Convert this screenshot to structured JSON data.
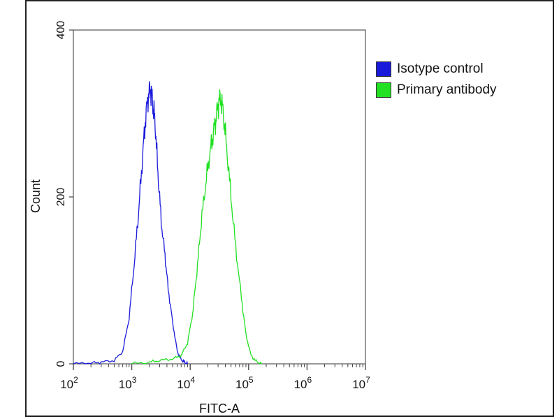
{
  "chart_data": {
    "type": "line",
    "xlabel": "FITC-A",
    "ylabel": "Count",
    "xscale": "log",
    "xlim": [
      100,
      10000000
    ],
    "ylim": [
      0,
      400
    ],
    "xticks": [
      {
        "base": "10",
        "exp": "2"
      },
      {
        "base": "10",
        "exp": "3"
      },
      {
        "base": "10",
        "exp": "4"
      },
      {
        "base": "10",
        "exp": "5"
      },
      {
        "base": "10",
        "exp": "6"
      },
      {
        "base": "10",
        "exp": "7"
      }
    ],
    "yticks": [
      "0",
      "200",
      "400"
    ],
    "legend_position": "right",
    "series": [
      {
        "name": "Isotype control",
        "color": "#1a1adb",
        "x": [
          100,
          200,
          300,
          500,
          700,
          900,
          1100,
          1300,
          1500,
          1700,
          1900,
          2100,
          2300,
          2500,
          2800,
          3200,
          3700,
          4200,
          5000,
          6000,
          7000,
          8000,
          9000
        ],
        "y": [
          0,
          1,
          2,
          4,
          15,
          55,
          120,
          180,
          240,
          290,
          320,
          330,
          310,
          290,
          230,
          170,
          130,
          90,
          50,
          15,
          5,
          2,
          0
        ]
      },
      {
        "name": "Primary antibody",
        "color": "#22e022",
        "x": [
          1000,
          2000,
          3000,
          5000,
          7000,
          9000,
          11000,
          13000,
          15000,
          18000,
          21000,
          24000,
          27000,
          30000,
          33000,
          37000,
          42000,
          50000,
          60000,
          75000,
          90000,
          110000,
          140000,
          170000
        ],
        "y": [
          0,
          2,
          4,
          6,
          10,
          25,
          60,
          110,
          160,
          210,
          245,
          270,
          290,
          310,
          320,
          300,
          260,
          200,
          140,
          80,
          35,
          10,
          2,
          0
        ]
      }
    ]
  }
}
